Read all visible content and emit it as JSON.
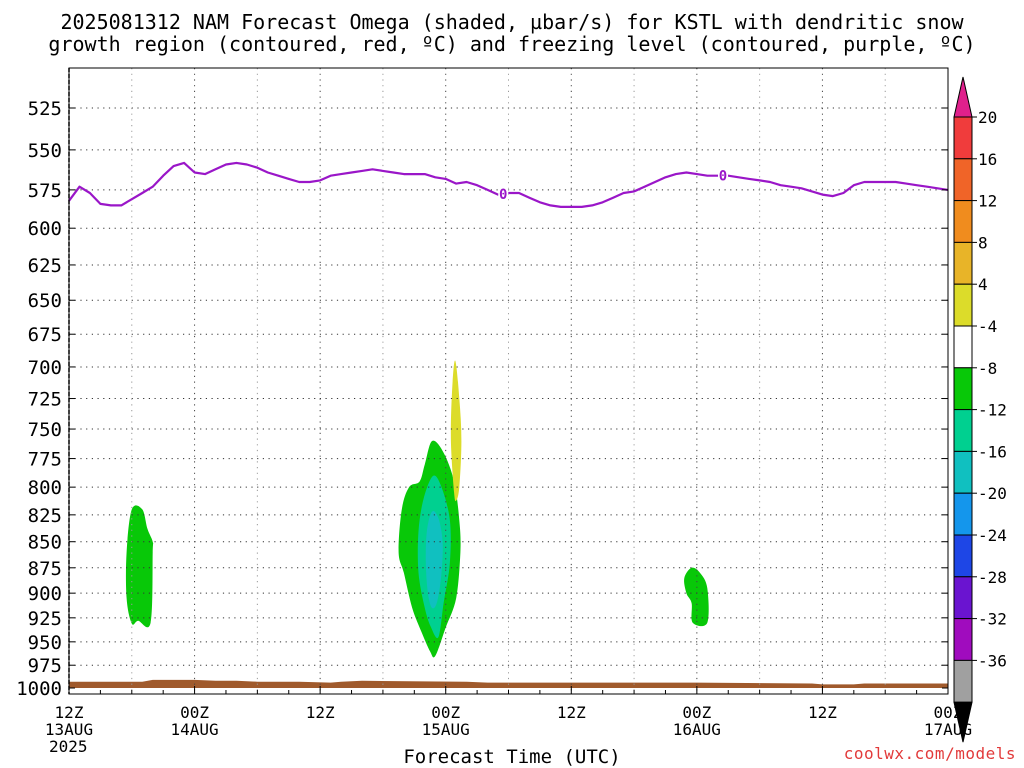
{
  "header": {
    "title_line1": "2025081312 NAM Forecast Omega (shaded, µbar/s) for KSTL with dendritic snow",
    "title_line2": "growth region (contoured, red, ºC) and freezing level (contoured, purple, ºC)"
  },
  "credit": "coolwx.com/models",
  "chart_data": {
    "type": "contour-heatmap",
    "title": "2025081312 NAM Forecast Omega (shaded, µbar/s) for KSTL with dendritic snow growth region (contoured, red, ºC) and freezing level (contoured, purple, ºC)",
    "xlabel": "Forecast Time (UTC)",
    "ylabel": "",
    "x_unit": "forecast hour",
    "xlim": [
      0,
      84
    ],
    "ylim": [
      1000,
      500
    ],
    "y_scale": "pressure (hPa), decreasing upward",
    "grid": true,
    "y_ticks": [
      525,
      550,
      575,
      600,
      625,
      650,
      675,
      700,
      725,
      750,
      775,
      800,
      825,
      850,
      875,
      900,
      925,
      950,
      975,
      1000
    ],
    "x_ticks": [
      {
        "hour": 0,
        "lines": [
          "12Z",
          "13AUG",
          "2025"
        ]
      },
      {
        "hour": 12,
        "lines": [
          "00Z",
          "14AUG"
        ]
      },
      {
        "hour": 24,
        "lines": [
          "12Z"
        ]
      },
      {
        "hour": 36,
        "lines": [
          "00Z",
          "15AUG"
        ]
      },
      {
        "hour": 48,
        "lines": [
          "12Z"
        ]
      },
      {
        "hour": 60,
        "lines": [
          "00Z",
          "16AUG"
        ]
      },
      {
        "hour": 72,
        "lines": [
          "12Z"
        ]
      },
      {
        "hour": 84,
        "lines": [
          "00Z",
          "17AUG"
        ]
      }
    ],
    "freezing_level": {
      "color": "#9a16c8",
      "label": "0",
      "label_hours": [
        41.5,
        62.5
      ],
      "points": [
        [
          0,
          582
        ],
        [
          1,
          573
        ],
        [
          2,
          577
        ],
        [
          3,
          584
        ],
        [
          4,
          585
        ],
        [
          5,
          585
        ],
        [
          6,
          581
        ],
        [
          7,
          577
        ],
        [
          8,
          573
        ],
        [
          9,
          566
        ],
        [
          10,
          560
        ],
        [
          11,
          558
        ],
        [
          12,
          564
        ],
        [
          13,
          565
        ],
        [
          14,
          562
        ],
        [
          15,
          559
        ],
        [
          16,
          558
        ],
        [
          17,
          559
        ],
        [
          18,
          561
        ],
        [
          19,
          564
        ],
        [
          20,
          566
        ],
        [
          21,
          568
        ],
        [
          22,
          570
        ],
        [
          23,
          570
        ],
        [
          24,
          569
        ],
        [
          25,
          566
        ],
        [
          26,
          565
        ],
        [
          27,
          564
        ],
        [
          28,
          563
        ],
        [
          29,
          562
        ],
        [
          30,
          563
        ],
        [
          31,
          564
        ],
        [
          32,
          565
        ],
        [
          33,
          565
        ],
        [
          34,
          565
        ],
        [
          35,
          567
        ],
        [
          36,
          568
        ],
        [
          37,
          571
        ],
        [
          38,
          570
        ],
        [
          39,
          572
        ],
        [
          40,
          575
        ],
        [
          41,
          578
        ],
        [
          42,
          577
        ],
        [
          43,
          577
        ],
        [
          44,
          580
        ],
        [
          45,
          583
        ],
        [
          46,
          585
        ],
        [
          47,
          586
        ],
        [
          48,
          586
        ],
        [
          49,
          586
        ],
        [
          50,
          585
        ],
        [
          51,
          583
        ],
        [
          52,
          580
        ],
        [
          53,
          577
        ],
        [
          54,
          576
        ],
        [
          55,
          573
        ],
        [
          56,
          570
        ],
        [
          57,
          567
        ],
        [
          58,
          565
        ],
        [
          59,
          564
        ],
        [
          60,
          565
        ],
        [
          61,
          566
        ],
        [
          62,
          566
        ],
        [
          63,
          566
        ],
        [
          64,
          567
        ],
        [
          65,
          568
        ],
        [
          66,
          569
        ],
        [
          67,
          570
        ],
        [
          68,
          572
        ],
        [
          69,
          573
        ],
        [
          70,
          574
        ],
        [
          71,
          576
        ],
        [
          72,
          578
        ],
        [
          73,
          579
        ],
        [
          74,
          577
        ],
        [
          75,
          572
        ],
        [
          76,
          570
        ],
        [
          77,
          570
        ],
        [
          78,
          570
        ],
        [
          79,
          570
        ],
        [
          80,
          571
        ],
        [
          81,
          572
        ],
        [
          82,
          573
        ],
        [
          83,
          574
        ],
        [
          84,
          575
        ]
      ]
    },
    "omega_regions": [
      {
        "band": "-8 to -4",
        "color": "#08c808",
        "outline": [
          [
            6.0,
            931
          ],
          [
            5.5,
            905
          ],
          [
            5.5,
            860
          ],
          [
            6.0,
            820
          ],
          [
            7.0,
            820
          ],
          [
            7.5,
            838
          ],
          [
            8.0,
            850
          ],
          [
            8.0,
            860
          ],
          [
            7.8,
            930
          ],
          [
            6.6,
            928
          ]
        ]
      },
      {
        "band": "-8 to -4",
        "color": "#08c808",
        "outline": [
          [
            32.0,
            880
          ],
          [
            31.5,
            860
          ],
          [
            31.8,
            820
          ],
          [
            32.5,
            800
          ],
          [
            33.5,
            795
          ],
          [
            34.0,
            780
          ],
          [
            34.7,
            760
          ],
          [
            35.8,
            770
          ],
          [
            36.8,
            795
          ],
          [
            37.3,
            830
          ],
          [
            37.4,
            860
          ],
          [
            37.0,
            905
          ],
          [
            36.0,
            935
          ],
          [
            35.0,
            965
          ],
          [
            34.5,
            960
          ],
          [
            33.7,
            940
          ],
          [
            32.8,
            915
          ]
        ]
      },
      {
        "band": "-12 to -8",
        "color": "#00d090",
        "outline": [
          [
            33.4,
            880
          ],
          [
            33.4,
            840
          ],
          [
            33.9,
            810
          ],
          [
            34.8,
            790
          ],
          [
            35.6,
            800
          ],
          [
            36.4,
            830
          ],
          [
            36.4,
            870
          ],
          [
            35.8,
            910
          ],
          [
            35.3,
            945
          ],
          [
            34.6,
            935
          ],
          [
            34.0,
            915
          ]
        ]
      },
      {
        "band": "-16 to -12",
        "color": "#10c0c0",
        "outline": [
          [
            34.1,
            870
          ],
          [
            34.2,
            840
          ],
          [
            34.7,
            822
          ],
          [
            35.3,
            828
          ],
          [
            35.7,
            850
          ],
          [
            35.6,
            880
          ],
          [
            35.2,
            908
          ],
          [
            34.7,
            915
          ],
          [
            34.3,
            900
          ]
        ]
      },
      {
        "band": "4 to 8",
        "color": "#dcdc2a",
        "outline": [
          [
            36.8,
            805
          ],
          [
            36.5,
            760
          ],
          [
            36.6,
            720
          ],
          [
            36.9,
            695
          ],
          [
            37.3,
            725
          ],
          [
            37.5,
            760
          ],
          [
            37.3,
            800
          ],
          [
            37.0,
            812
          ]
        ]
      },
      {
        "band": "-8 to -4",
        "color": "#08c808",
        "outline": [
          [
            58.8,
            885
          ],
          [
            59.5,
            875
          ],
          [
            60.3,
            880
          ],
          [
            61.0,
            895
          ],
          [
            61.0,
            930
          ],
          [
            59.6,
            930
          ],
          [
            59.5,
            910
          ],
          [
            59.0,
            900
          ]
        ]
      }
    ],
    "terrain_bands": [
      {
        "color": "#a05a2c",
        "from_pressure": 1000,
        "top_points": [
          [
            0,
            993
          ],
          [
            3,
            993
          ],
          [
            7,
            993
          ],
          [
            8,
            991
          ],
          [
            12,
            991
          ],
          [
            14,
            992
          ],
          [
            16,
            992
          ],
          [
            18,
            993
          ],
          [
            22,
            993
          ],
          [
            25,
            994
          ],
          [
            26,
            993
          ],
          [
            28,
            992
          ],
          [
            38,
            993
          ],
          [
            40,
            994
          ],
          [
            50,
            994
          ],
          [
            60,
            994
          ],
          [
            71,
            995
          ],
          [
            72,
            996
          ],
          [
            75,
            996
          ],
          [
            76,
            995
          ],
          [
            80,
            995
          ],
          [
            84,
            995
          ]
        ]
      }
    ],
    "colorbar": {
      "labels": [
        "20",
        "16",
        "12",
        "8",
        "4",
        "-4",
        "-8",
        "-12",
        "-16",
        "-20",
        "-24",
        "-28",
        "-32",
        "-36"
      ],
      "top_triangle_color": "#e0208c",
      "bottom_triangle_color": "#000000",
      "segments": [
        {
          "color": "#f03c3c"
        },
        {
          "color": "#f06428"
        },
        {
          "color": "#f08c1e"
        },
        {
          "color": "#e8b428"
        },
        {
          "color": "#dcdc2a"
        },
        {
          "color": "#ffffff"
        },
        {
          "color": "#08c808"
        },
        {
          "color": "#00d090"
        },
        {
          "color": "#10c0c0"
        },
        {
          "color": "#1496ec"
        },
        {
          "color": "#1e46e6"
        },
        {
          "color": "#6a14d0"
        },
        {
          "color": "#a00cbe"
        },
        {
          "color": "#a0a0a0"
        }
      ]
    }
  }
}
